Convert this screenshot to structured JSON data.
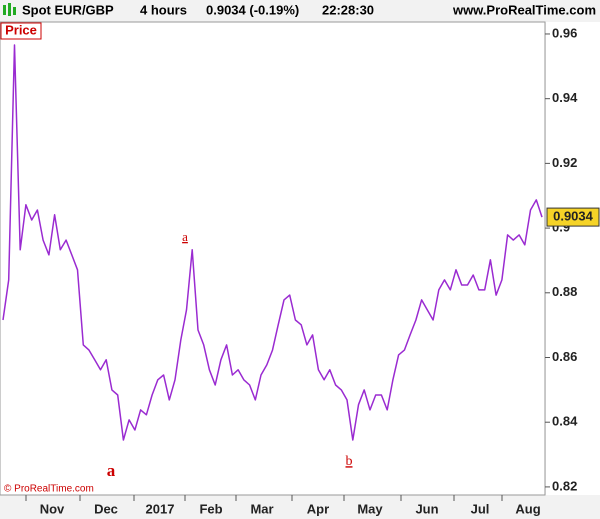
{
  "chart_data": {
    "type": "line",
    "instrument": "Spot EUR/GBP",
    "timeframe": "4 hours",
    "last_quote": "0.9034 (-0.19%)",
    "clock": "22:28:30",
    "website": "www.ProRealTime.com",
    "panel_label": "Price",
    "copyright": "© ProRealTime.com",
    "annotations": [
      "a",
      "a",
      "b"
    ],
    "xtick_labels": [
      "Nov",
      "Dec",
      "2017",
      "Feb",
      "Mar",
      "Apr",
      "May",
      "Jun",
      "Jul",
      "Aug"
    ],
    "ylim": [
      0.8175,
      0.9637
    ],
    "yticks": [
      0.82,
      0.84,
      0.86,
      0.88,
      0.9,
      0.92,
      0.94,
      0.96
    ],
    "price_tag": 0.9034,
    "series": [
      {
        "color": "#9a2bd1",
        "values": [
          0.8716,
          0.884,
          0.9566,
          0.8933,
          0.9072,
          0.9025,
          0.9056,
          0.8963,
          0.8917,
          0.9041,
          0.8933,
          0.8963,
          0.8917,
          0.8871,
          0.8639,
          0.8623,
          0.8593,
          0.8562,
          0.8593,
          0.85,
          0.8484,
          0.8345,
          0.8407,
          0.8376,
          0.8438,
          0.8423,
          0.8484,
          0.8531,
          0.8546,
          0.8469,
          0.8531,
          0.8654,
          0.8747,
          0.8933,
          0.8685,
          0.8639,
          0.8562,
          0.8515,
          0.8593,
          0.8639,
          0.8546,
          0.8562,
          0.8531,
          0.8515,
          0.8469,
          0.8546,
          0.8577,
          0.8623,
          0.8701,
          0.8778,
          0.8793,
          0.8716,
          0.8701,
          0.8639,
          0.867,
          0.8562,
          0.8531,
          0.8562,
          0.8515,
          0.85,
          0.8469,
          0.8345,
          0.8454,
          0.85,
          0.8438,
          0.8484,
          0.8484,
          0.8438,
          0.8531,
          0.8608,
          0.8623,
          0.867,
          0.8716,
          0.8778,
          0.8747,
          0.8716,
          0.8809,
          0.884,
          0.8809,
          0.8871,
          0.8824,
          0.8824,
          0.8855,
          0.8809,
          0.8809,
          0.8902,
          0.8793,
          0.884,
          0.8979,
          0.8963,
          0.8979,
          0.8948,
          0.9056,
          0.9087,
          0.9034
        ]
      }
    ]
  }
}
